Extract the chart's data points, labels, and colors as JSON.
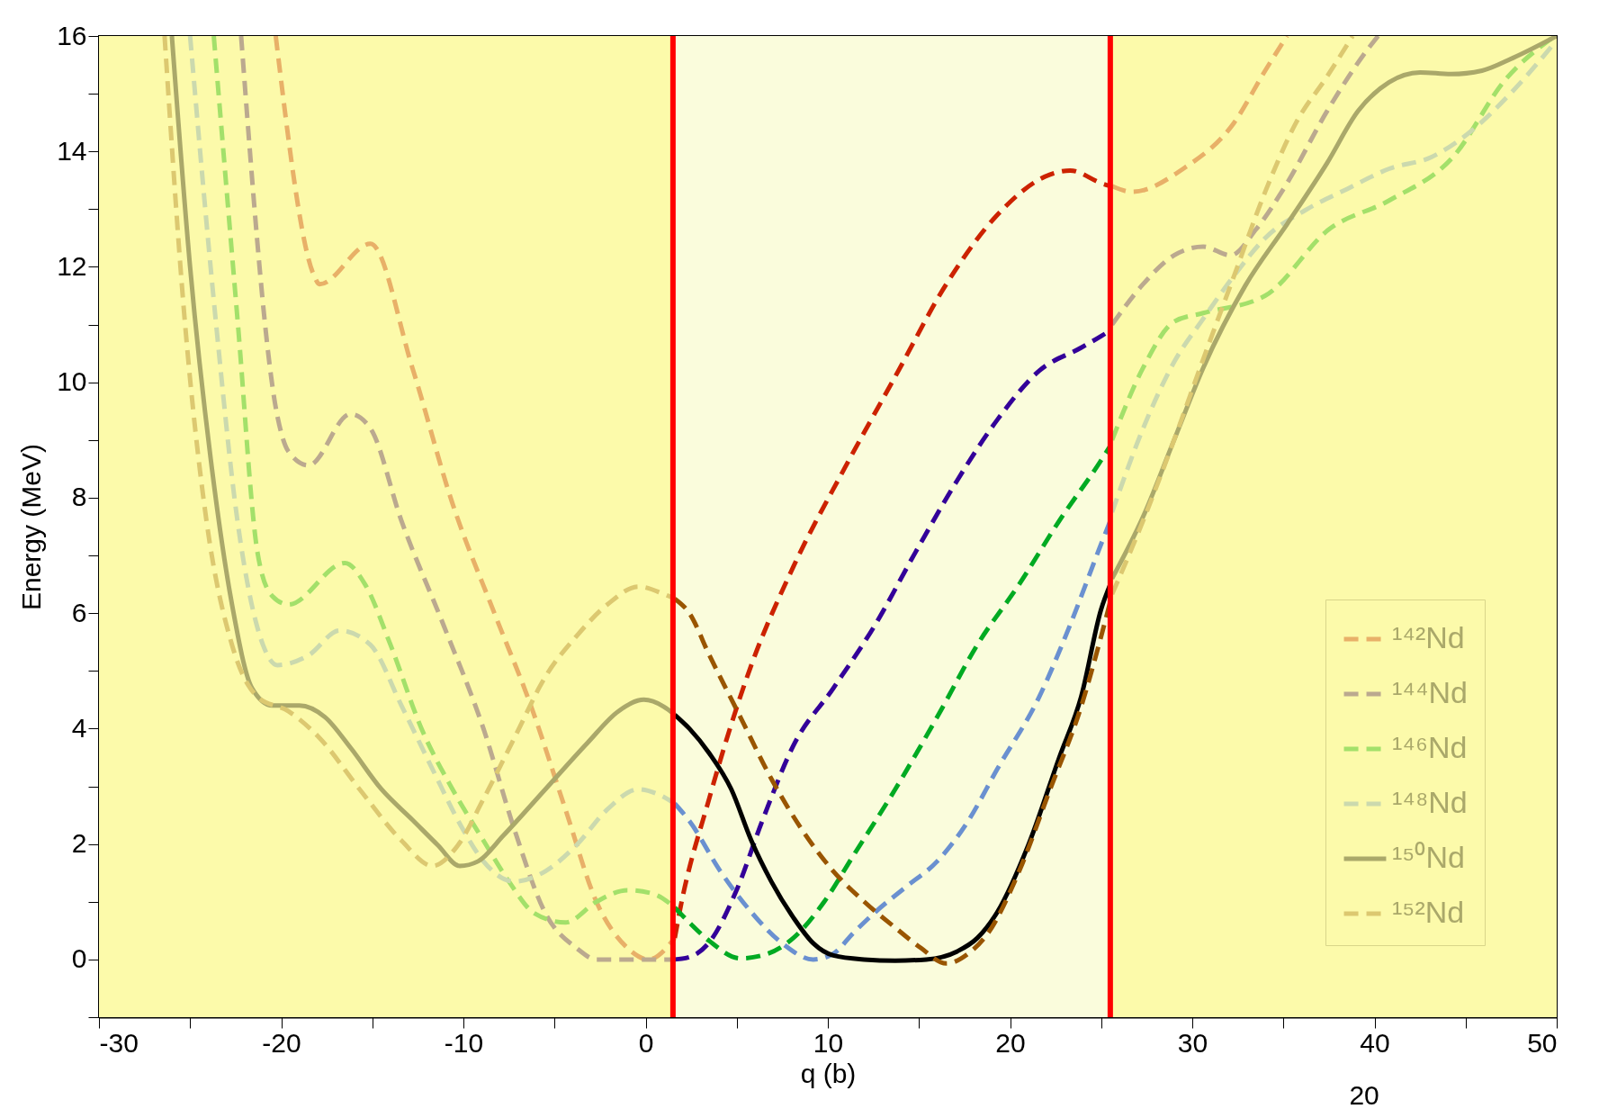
{
  "chart_data": {
    "type": "line",
    "xlabel": "q (b)",
    "ylabel": "Energy (MeV)",
    "xlim": [
      -30,
      50
    ],
    "ylim": [
      -1,
      16
    ],
    "xticks": [
      -30,
      {
        "value": -25,
        "label": null
      },
      -20,
      {
        "value": -15,
        "label": null
      },
      -10,
      {
        "value": -5,
        "label": null
      },
      0,
      {
        "value": 5,
        "label": null
      },
      10,
      {
        "value": 15,
        "label": null
      },
      20,
      {
        "value": 25,
        "label": null
      },
      30,
      {
        "value": 35,
        "label": null
      },
      40,
      {
        "value": 45,
        "label": null
      },
      50
    ],
    "yticks": [
      {
        "value": -1,
        "label": null
      },
      0,
      {
        "value": 1,
        "label": null
      },
      2,
      {
        "value": 3,
        "label": null
      },
      4,
      {
        "value": 5,
        "label": null
      },
      6,
      {
        "value": 7,
        "label": null
      },
      8,
      {
        "value": 9,
        "label": null
      },
      10,
      {
        "value": 11,
        "label": null
      },
      12,
      {
        "value": 13,
        "label": null
      },
      14,
      {
        "value": 15,
        "label": null
      },
      16
    ],
    "grid": false,
    "legend": "bottom right",
    "legend_title": null,
    "bands": [
      {
        "axis": "x",
        "from": -30,
        "to": 1.5,
        "color": "#fcfaaa"
      },
      {
        "axis": "x",
        "from": 1.5,
        "to": 25.5,
        "color": "#fafcdc"
      },
      {
        "axis": "x",
        "from": 25.5,
        "to": 50,
        "color": "#fcfaaa"
      }
    ],
    "ref_lines": [
      {
        "axis": "x",
        "value": 1.5,
        "label": null,
        "color": "#ff0000"
      },
      {
        "axis": "x",
        "value": 25.5,
        "label": null,
        "color": "#ff0000"
      }
    ],
    "annotations": [
      "20"
    ],
    "series": [
      {
        "name": "¹⁴²Nd",
        "color": "#e8b068",
        "line_style": "dashed",
        "x": [
          -20.3,
          -18.2,
          -17.9,
          -15.1,
          -12.8,
          -10.6,
          -8.3,
          -6.3,
          -4.4,
          -2.7,
          -1.0,
          0.15,
          1.6,
          null,
          25.6,
          26.7,
          29.5,
          32.3,
          34,
          35.2
        ],
        "values": [
          16,
          11.85,
          11.7,
          12.4,
          10.25,
          7.9,
          6.0,
          4.4,
          2.6,
          1.0,
          0.2,
          0,
          0.37,
          null,
          13.4,
          13.3,
          13.7,
          14.5,
          15.4,
          16
        ]
      },
      {
        "name": "¹⁴⁴Nd",
        "color": "#bba98f",
        "line_style": "dashed",
        "x": [
          -22.2,
          -20.2,
          -19.6,
          -18.5,
          -16.2,
          -15.1,
          -13.4,
          -11.1,
          -8.9,
          -7.2,
          -5.5,
          -3.8,
          -2.7,
          0.15,
          1.6,
          null,
          25.6,
          27.3,
          29,
          30.6,
          32.1,
          33.5,
          35.2,
          37.4,
          39.7,
          40.2
        ],
        "values": [
          16,
          9.4,
          8.8,
          8.56,
          9.45,
          9.2,
          7.6,
          5.8,
          4.0,
          2.25,
          0.8,
          0.2,
          0,
          0,
          0,
          null,
          11.0,
          11.7,
          12.2,
          12.35,
          12.2,
          12.65,
          13.45,
          14.7,
          15.8,
          16
        ]
      },
      {
        "name": "¹⁴⁶Nd",
        "color": "#a3e06a",
        "line_style": "dashed",
        "x": [
          -23.7,
          -22.4,
          -21.3,
          -20.5,
          -19.6,
          -16.5,
          -15.4,
          -14,
          -12.3,
          -10.6,
          -8.9,
          -7.5,
          -6.1,
          -4.4,
          -2.7,
          -1.0,
          0.4,
          1.6,
          null,
          25.6,
          27.3,
          29,
          30.6,
          34.0,
          37.5,
          40.8,
          44.3,
          47.2,
          49.9
        ],
        "values": [
          16,
          11.1,
          7.05,
          6.3,
          6.15,
          6.87,
          6.5,
          5.45,
          4.0,
          2.95,
          2.06,
          1.35,
          0.8,
          0.64,
          1.0,
          1.2,
          1.14,
          0.9,
          null,
          9.0,
          10.25,
          11.05,
          11.2,
          11.5,
          12.65,
          13.15,
          13.9,
          15.25,
          16
        ]
      },
      {
        "name": "¹⁴⁸Nd",
        "color": "#cbd9ae",
        "line_style": "dashed",
        "x": [
          -25,
          -23.6,
          -22.4,
          -21,
          -20.2,
          -18.5,
          -16.8,
          -15.1,
          -13.4,
          -11.7,
          -10,
          -8.9,
          -7.2,
          -5.5,
          -3.8,
          -2.1,
          -0.4,
          0.7,
          1.6,
          null,
          25.6,
          27.3,
          29,
          30.6,
          32.3,
          34,
          36.3,
          38.5,
          40.8,
          43.1,
          45.3,
          47.6,
          49.8
        ],
        "values": [
          16,
          11.1,
          7.6,
          5.45,
          5.1,
          5.27,
          5.7,
          5.45,
          4.4,
          3.3,
          2.24,
          1.7,
          1.35,
          1.53,
          1.98,
          2.6,
          2.95,
          2.86,
          2.7,
          null,
          7.75,
          9.2,
          10.35,
          11.1,
          11.85,
          12.5,
          13.0,
          13.35,
          13.7,
          13.9,
          14.35,
          15.05,
          15.85
        ]
      },
      {
        "name": "¹⁵⁰Nd",
        "color": "#aaa86a",
        "line_style": "solid",
        "x": [
          -26,
          -25,
          -23.8,
          -22.7,
          -21.6,
          -20.5,
          -19,
          -17.6,
          -16.2,
          -14.5,
          -12.8,
          -11.4,
          -10.2,
          -9.2,
          -7.8,
          -5.5,
          -3.2,
          -1.5,
          -0.1,
          1.0,
          1.6,
          null,
          25.6,
          27.3,
          29,
          30.6,
          32.9,
          35.2,
          37.4,
          39.1,
          40.8,
          42.5,
          44.2,
          45.9,
          47.6,
          50
        ],
        "values": [
          16,
          12.0,
          8.5,
          6.15,
          4.7,
          4.4,
          4.4,
          4.2,
          3.67,
          2.95,
          2.42,
          1.98,
          1.62,
          1.7,
          2.15,
          2.95,
          3.75,
          4.3,
          4.5,
          4.38,
          4.24,
          null,
          6.6,
          7.67,
          9.0,
          10.25,
          11.67,
          12.74,
          13.8,
          14.7,
          15.2,
          15.37,
          15.34,
          15.4,
          15.62,
          16
        ]
      },
      {
        "name": "¹⁵²Nd",
        "color": "#dcc870",
        "line_style": "dashed",
        "x": [
          -26.4,
          -25.3,
          -24.1,
          -22.7,
          -21.3,
          -19.6,
          -17.9,
          -15.7,
          -13.4,
          -11.7,
          -10.3,
          -8.9,
          -7.2,
          -5.5,
          -3.8,
          -2.1,
          -0.4,
          1.0,
          1.6,
          null,
          25.6,
          27.3,
          29,
          30.6,
          32.3,
          34,
          35.7,
          37.4,
          38.8
        ],
        "values": [
          16,
          11.1,
          7.6,
          5.45,
          4.55,
          4.3,
          3.84,
          2.95,
          2.06,
          1.62,
          1.98,
          2.78,
          3.84,
          4.9,
          5.6,
          6.15,
          6.46,
          6.33,
          6.25,
          null,
          6.33,
          7.6,
          9.0,
          10.4,
          11.85,
          13.3,
          14.5,
          15.3,
          16
        ]
      },
      {
        "color": "#cc2200",
        "line_style": "dashed",
        "x": [
          1.6,
          1.85,
          3.5,
          5.8,
          8.1,
          10.9,
          13.7,
          16.5,
          19.3,
          22.2,
          23.3,
          25,
          25.5
        ],
        "values": [
          0.37,
          0.8,
          2.8,
          5.1,
          6.8,
          8.5,
          10.1,
          11.7,
          12.9,
          13.6,
          13.67,
          13.45,
          13.4
        ]
      },
      {
        "color": "#330099",
        "line_style": "dashed",
        "x": [
          1.6,
          2.4,
          3.5,
          4.95,
          6.4,
          8.1,
          10.3,
          12.6,
          14.8,
          17.1,
          19.3,
          21.6,
          23.9,
          25,
          25.5
        ],
        "values": [
          0,
          0.04,
          0.3,
          1.17,
          2.4,
          3.7,
          4.7,
          5.8,
          7.05,
          8.3,
          9.35,
          10.2,
          10.6,
          10.8,
          10.9
        ]
      },
      {
        "color": "#00aa22",
        "line_style": "dashed",
        "x": [
          1.6,
          2.4,
          3.5,
          5.2,
          6.4,
          8.1,
          9.8,
          11.4,
          13.7,
          16,
          18.2,
          20.5,
          22.7,
          25,
          25.5
        ],
        "values": [
          0.9,
          0.64,
          0.32,
          0.02,
          0.07,
          0.37,
          1.0,
          1.8,
          2.95,
          4.2,
          5.45,
          6.5,
          7.6,
          8.65,
          8.9
        ]
      },
      {
        "color": "#6a90d0",
        "line_style": "dashed",
        "x": [
          1.6,
          2.4,
          4.1,
          5.8,
          7.5,
          9.2,
          10.3,
          11.4,
          12.6,
          14.3,
          16,
          17.7,
          19.3,
          21.6,
          23.3,
          25,
          25.5
        ],
        "values": [
          2.7,
          2.4,
          1.53,
          0.82,
          0.28,
          0,
          0.1,
          0.46,
          0.82,
          1.26,
          1.7,
          2.4,
          3.3,
          4.55,
          5.8,
          7.2,
          7.6
        ]
      },
      {
        "color": "#000000",
        "line_style": "solid",
        "x": [
          1.6,
          2.4,
          3.5,
          4.7,
          5.8,
          6.9,
          8.1,
          9.2,
          10.3,
          12,
          13.7,
          15.4,
          17.1,
          18.2,
          19.3,
          21,
          22.7,
          23.9,
          25,
          25.5
        ],
        "values": [
          4.24,
          4.0,
          3.57,
          2.95,
          2.06,
          1.35,
          0.73,
          0.28,
          0.07,
          0,
          -0.02,
          0,
          0.14,
          0.37,
          0.82,
          1.98,
          3.5,
          4.55,
          6.07,
          6.5
        ]
      },
      {
        "color": "#995500",
        "line_style": "dashed",
        "x": [
          1.6,
          2.4,
          3.5,
          5.2,
          6.9,
          8.6,
          10.3,
          12,
          13.7,
          15.1,
          16.5,
          17.7,
          18.8,
          20.5,
          22.2,
          23.9,
          25,
          25.5
        ],
        "values": [
          6.25,
          6.0,
          5.27,
          4.2,
          3.13,
          2.24,
          1.53,
          1.0,
          0.55,
          0.2,
          -0.07,
          0.1,
          0.46,
          1.53,
          2.95,
          4.38,
          5.6,
          6.2
        ]
      }
    ]
  }
}
